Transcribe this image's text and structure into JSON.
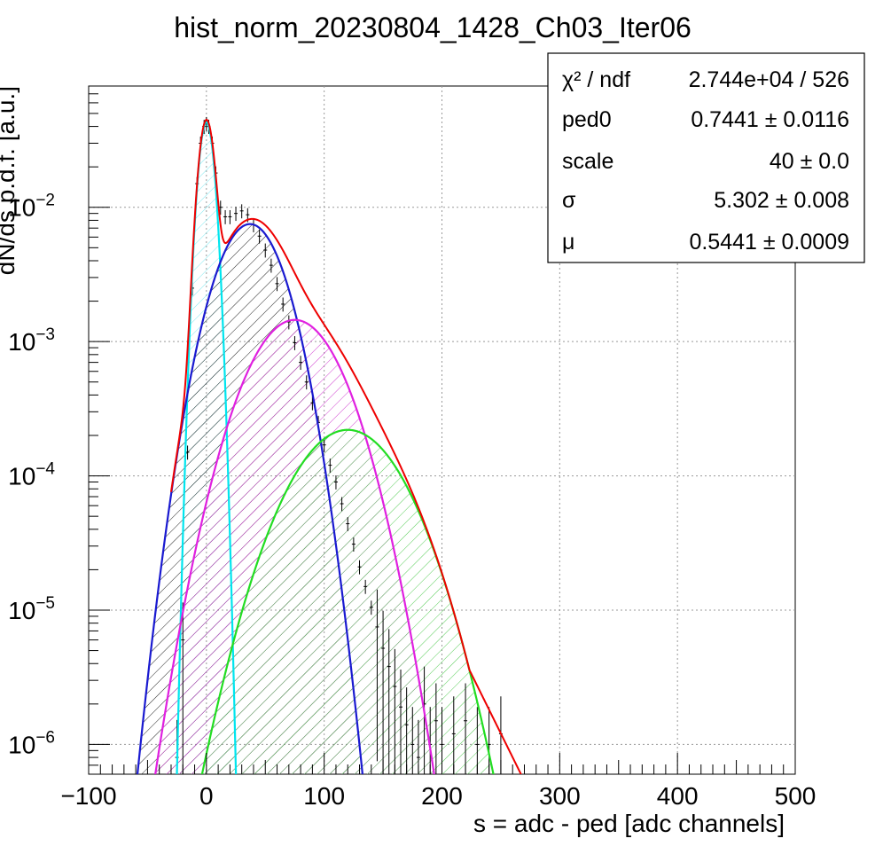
{
  "chart_data": {
    "type": "scatter",
    "title": "hist_norm_20230804_1428_Ch03_Iter06",
    "xlabel": "s = adc - ped [adc channels]",
    "ylabel": "dN/ds p.d.f. [a.u.]",
    "xlim": [
      -100,
      500
    ],
    "ylim": [
      6e-07,
      0.08
    ],
    "yscale": "log",
    "grid": true,
    "x_ticks": [
      {
        "value": -100,
        "label": "−100"
      },
      {
        "value": 0,
        "label": "0"
      },
      {
        "value": 100,
        "label": "100"
      },
      {
        "value": 200,
        "label": "200"
      },
      {
        "value": 300,
        "label": "300"
      },
      {
        "value": 400,
        "label": "400"
      },
      {
        "value": 500,
        "label": "500"
      }
    ],
    "y_ticks": [
      {
        "value": 1e-06,
        "base": "10",
        "exp": "−6"
      },
      {
        "value": 1e-05,
        "base": "10",
        "exp": "−5"
      },
      {
        "value": 0.0001,
        "base": "10",
        "exp": "−4"
      },
      {
        "value": 0.001,
        "base": "10",
        "exp": "−3"
      },
      {
        "value": 0.01,
        "base": "10",
        "exp": "−2"
      }
    ],
    "stats_box": {
      "rows": [
        {
          "name": "χ² / ndf",
          "value": "2.744e+04 / 526"
        },
        {
          "name": "ped0",
          "value": "0.7441 ± 0.0116"
        },
        {
          "name": "scale",
          "value": "40 ± 0.0"
        },
        {
          "name": "σ",
          "value": "5.302 ± 0.008"
        },
        {
          "name": "μ",
          "value": "0.5441 ± 0.0009"
        }
      ]
    },
    "components": [
      {
        "id": "pedestal",
        "color": "#00e5ee",
        "hatch": "#7ee8f0",
        "amplitude": 0.043,
        "mean": 0,
        "sigma": 5.3
      },
      {
        "id": "pe1",
        "color": "#1a1ad0",
        "hatch": "#222222",
        "amplitude": 0.0075,
        "mean": 37,
        "sigma": 22
      },
      {
        "id": "pe2",
        "color": "#e020e0",
        "hatch": "#d040d0",
        "amplitude": 0.00145,
        "mean": 75,
        "sigma": 30
      },
      {
        "id": "pe3",
        "color": "#22dd22",
        "hatch": "#55cc55",
        "amplitude": 0.00022,
        "mean": 120,
        "sigma": 36
      }
    ],
    "total_fit_color": "#ee0000",
    "data_points": {
      "x": [
        -25,
        -20,
        -16,
        -12,
        -8,
        -5,
        -2,
        0,
        2,
        5,
        8,
        12,
        16,
        20,
        25,
        30,
        35,
        40,
        45,
        50,
        55,
        60,
        65,
        70,
        75,
        80,
        85,
        90,
        95,
        100,
        105,
        110,
        115,
        120,
        125,
        130,
        135,
        140,
        145,
        150,
        155,
        160,
        165,
        170,
        175,
        180,
        185,
        190,
        195,
        200,
        210,
        220,
        230,
        240,
        250
      ],
      "y": [
        8e-07,
        6e-06,
        0.00015,
        0.0025,
        0.015,
        0.03,
        0.04,
        0.042,
        0.04,
        0.03,
        0.018,
        0.01,
        0.0085,
        0.0085,
        0.009,
        0.0094,
        0.0088,
        0.0074,
        0.0061,
        0.0048,
        0.0037,
        0.0027,
        0.0019,
        0.0014,
        0.00098,
        0.0007,
        0.0005,
        0.00035,
        0.00025,
        0.00017,
        0.00012,
        9e-05,
        6.2e-05,
        4.4e-05,
        3.1e-05,
        2.1e-05,
        1.5e-05,
        1.05e-05,
        7.5e-06,
        5.2e-06,
        3.8e-06,
        2.7e-06,
        1.9e-06,
        1.4e-06,
        1e-06,
        8e-07,
        2e-06,
        1e-06,
        1.5e-06,
        1e-06,
        1.2e-06,
        1.5e-06,
        1e-06,
        1e-06,
        1.2e-06
      ]
    }
  }
}
